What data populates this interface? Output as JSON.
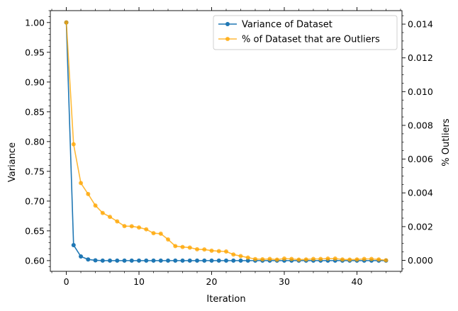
{
  "chart_data": {
    "type": "line",
    "xlabel": "Iteration",
    "ylabel_left": "Variance",
    "ylabel_right": "% Outliers",
    "xlim": [
      -2.2,
      46.2
    ],
    "ylim_left": [
      0.582,
      1.02
    ],
    "ylim_right": [
      -0.00065,
      0.0148
    ],
    "xticks": [
      0,
      10,
      20,
      30,
      40
    ],
    "yticks_left": [
      0.6,
      0.65,
      0.7,
      0.75,
      0.8,
      0.85,
      0.9,
      0.95,
      1.0
    ],
    "yticks_left_labels": [
      "0.60",
      "0.65",
      "0.70",
      "0.75",
      "0.80",
      "0.85",
      "0.90",
      "0.95",
      "1.00"
    ],
    "yticks_right": [
      0.0,
      0.002,
      0.004,
      0.006,
      0.008,
      0.01,
      0.012,
      0.014
    ],
    "yticks_right_labels": [
      "0.000",
      "0.002",
      "0.004",
      "0.006",
      "0.008",
      "0.010",
      "0.012",
      "0.014"
    ],
    "legend_position": "top-right",
    "grid": false,
    "series": [
      {
        "name": "Variance of Dataset",
        "axis": "left",
        "color": "#1f77b4",
        "x": [
          0,
          1,
          2,
          3,
          4,
          5,
          6,
          7,
          8,
          9,
          10,
          11,
          12,
          13,
          14,
          15,
          16,
          17,
          18,
          19,
          20,
          21,
          22,
          23,
          24,
          25,
          26,
          27,
          28,
          29,
          30,
          31,
          32,
          33,
          34,
          35,
          36,
          37,
          38,
          39,
          40,
          41,
          42,
          43,
          44
        ],
        "values": [
          1.0,
          0.626,
          0.607,
          0.602,
          0.6005,
          0.6,
          0.6,
          0.6,
          0.6,
          0.6,
          0.6,
          0.6,
          0.6,
          0.6,
          0.6,
          0.6,
          0.6,
          0.6,
          0.6,
          0.6,
          0.6,
          0.6,
          0.6,
          0.6,
          0.6,
          0.6,
          0.6,
          0.6,
          0.6,
          0.6,
          0.6,
          0.6,
          0.6,
          0.6,
          0.6,
          0.6,
          0.6,
          0.6,
          0.6,
          0.6,
          0.6,
          0.6,
          0.6,
          0.6,
          0.6
        ]
      },
      {
        "name": "% of Dataset that are Outliers",
        "axis": "right",
        "color": "#ffa500",
        "x": [
          0,
          1,
          2,
          3,
          4,
          5,
          6,
          7,
          8,
          9,
          10,
          11,
          12,
          13,
          14,
          15,
          16,
          17,
          18,
          19,
          20,
          21,
          22,
          23,
          24,
          25,
          26,
          27,
          28,
          29,
          30,
          31,
          32,
          33,
          34,
          35,
          36,
          37,
          38,
          39,
          40,
          41,
          42,
          43,
          44
        ],
        "values": [
          0.0141,
          0.00688,
          0.00458,
          0.00393,
          0.00325,
          0.00281,
          0.00258,
          0.00231,
          0.00203,
          0.00202,
          0.00195,
          0.00184,
          0.00161,
          0.00158,
          0.00124,
          0.000845,
          0.000795,
          0.000755,
          0.000655,
          0.000645,
          0.000575,
          0.000545,
          0.000525,
          0.000345,
          0.000255,
          0.000165,
          7.5e-05,
          6.5e-05,
          8.5e-05,
          4.5e-05,
          0.000105,
          8.5e-05,
          4.5e-05,
          5.5e-05,
          8.5e-05,
          8.5e-05,
          0.000105,
          0.000105,
          5.5e-05,
          4.5e-05,
          5.5e-05,
          8.5e-05,
          8.5e-05,
          5.5e-05,
          5e-06
        ]
      }
    ]
  }
}
